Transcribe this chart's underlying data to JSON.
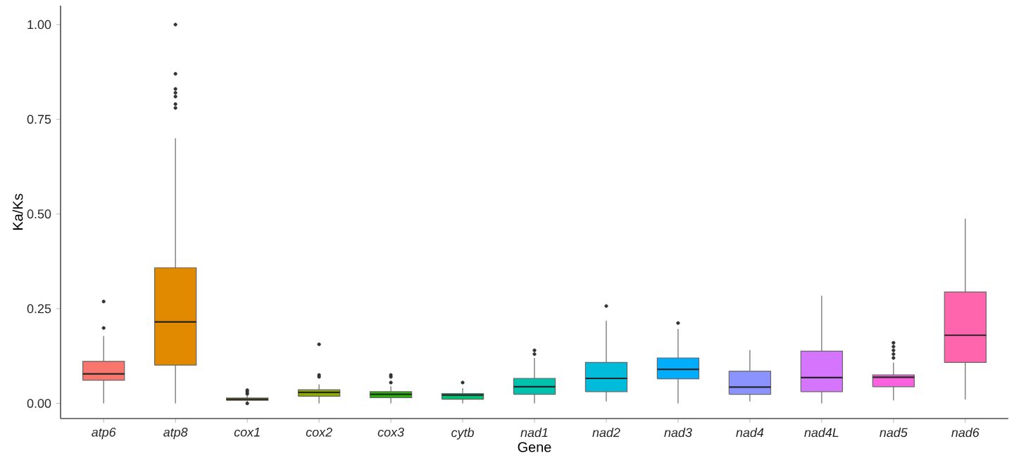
{
  "chart_data": {
    "type": "box",
    "xlabel": "Gene",
    "ylabel": "Ka/Ks",
    "categories": [
      "atp6",
      "atp8",
      "cox1",
      "cox2",
      "cox3",
      "cytb",
      "nad1",
      "nad2",
      "nad3",
      "nad4",
      "nad4L",
      "nad5",
      "nad6"
    ],
    "colors": [
      "#F8766D",
      "#E18A00",
      "#BE9C00",
      "#8CAB00",
      "#24B700",
      "#00BE70",
      "#00C1AB",
      "#00BBDA",
      "#00ACFC",
      "#8B93FF",
      "#D575FE",
      "#F962DD",
      "#FF65AC"
    ],
    "boxes": [
      {
        "low": 0.0,
        "q1": 0.061,
        "median": 0.078,
        "q3": 0.111,
        "high": 0.178,
        "outliers": [
          0.199,
          0.269
        ]
      },
      {
        "low": 0.0,
        "q1": 0.101,
        "median": 0.215,
        "q3": 0.358,
        "high": 0.7,
        "outliers": [
          0.78,
          0.79,
          0.81,
          0.82,
          0.83,
          0.87,
          1.0
        ]
      },
      {
        "low": 0.002,
        "q1": 0.008,
        "median": 0.011,
        "q3": 0.014,
        "high": 0.02,
        "outliers": [
          0.0,
          0.025,
          0.03,
          0.035
        ]
      },
      {
        "low": 0.0,
        "q1": 0.019,
        "median": 0.029,
        "q3": 0.036,
        "high": 0.05,
        "outliers": [
          0.07,
          0.075,
          0.156
        ]
      },
      {
        "low": 0.0,
        "q1": 0.015,
        "median": 0.024,
        "q3": 0.031,
        "high": 0.045,
        "outliers": [
          0.055,
          0.07,
          0.075
        ]
      },
      {
        "low": 0.0,
        "q1": 0.011,
        "median": 0.022,
        "q3": 0.026,
        "high": 0.04,
        "outliers": [
          0.055
        ]
      },
      {
        "low": 0.0,
        "q1": 0.024,
        "median": 0.044,
        "q3": 0.066,
        "high": 0.12,
        "outliers": [
          0.13,
          0.14
        ]
      },
      {
        "low": 0.005,
        "q1": 0.031,
        "median": 0.066,
        "q3": 0.108,
        "high": 0.218,
        "outliers": [
          0.257
        ]
      },
      {
        "low": 0.0,
        "q1": 0.065,
        "median": 0.09,
        "q3": 0.12,
        "high": 0.196,
        "outliers": [
          0.212
        ]
      },
      {
        "low": 0.005,
        "q1": 0.024,
        "median": 0.043,
        "q3": 0.085,
        "high": 0.141
      },
      {
        "low": 0.0,
        "q1": 0.031,
        "median": 0.068,
        "q3": 0.138,
        "high": 0.284
      },
      {
        "low": 0.008,
        "q1": 0.044,
        "median": 0.069,
        "q3": 0.075,
        "high": 0.108,
        "outliers": [
          0.12,
          0.13,
          0.14,
          0.15,
          0.16
        ]
      },
      {
        "low": 0.01,
        "q1": 0.108,
        "median": 0.18,
        "q3": 0.294,
        "high": 0.488
      }
    ],
    "ylim": [
      -0.04,
      1.05
    ],
    "yticks": [
      {
        "value": 0,
        "label": "0.00"
      },
      {
        "value": 0.25,
        "label": "0.25"
      },
      {
        "value": 0.5,
        "label": "0.50"
      },
      {
        "value": 0.75,
        "label": "0.75"
      },
      {
        "value": 1,
        "label": "1.00"
      }
    ],
    "grid": false
  }
}
